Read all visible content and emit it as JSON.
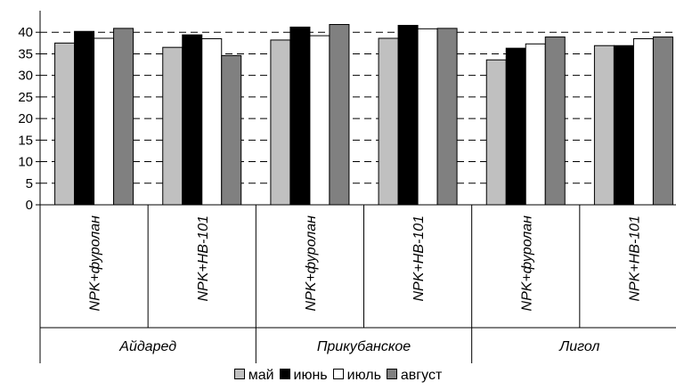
{
  "chart_data": {
    "type": "bar",
    "groups": [
      {
        "label": "Айдаред",
        "categories": [
          "NPK+фуролан",
          "NPK+HB-101"
        ]
      },
      {
        "label": "Прикубанское",
        "categories": [
          "NPK+фуролан",
          "NPK+HB-101"
        ]
      },
      {
        "label": "Лигол",
        "categories": [
          "NPK+фуролан",
          "NPK+HB-101"
        ]
      }
    ],
    "categories": [
      "NPK+фуролан",
      "NPK+HB-101",
      "NPK+фуролан",
      "NPK+HB-101",
      "NPK+фуролан",
      "NPK+HB-101"
    ],
    "series": [
      {
        "name": "май",
        "color": "#c0c0c0",
        "values": [
          37.5,
          36.5,
          38.2,
          38.6,
          33.6,
          36.9
        ]
      },
      {
        "name": "июнь",
        "color": "#000000",
        "values": [
          40.2,
          39.4,
          41.2,
          41.6,
          36.3,
          36.9
        ]
      },
      {
        "name": "июль",
        "color": "#ffffff",
        "values": [
          38.6,
          38.5,
          39.2,
          40.8,
          37.3,
          38.5
        ]
      },
      {
        "name": "август",
        "color": "#808080",
        "values": [
          40.9,
          34.6,
          41.8,
          40.9,
          38.9,
          38.9
        ]
      }
    ],
    "ylim": [
      0,
      45
    ],
    "yticks": [
      0,
      5,
      10,
      15,
      20,
      25,
      30,
      35,
      40
    ],
    "grid": "dashed horizontal",
    "legend_position": "bottom"
  }
}
